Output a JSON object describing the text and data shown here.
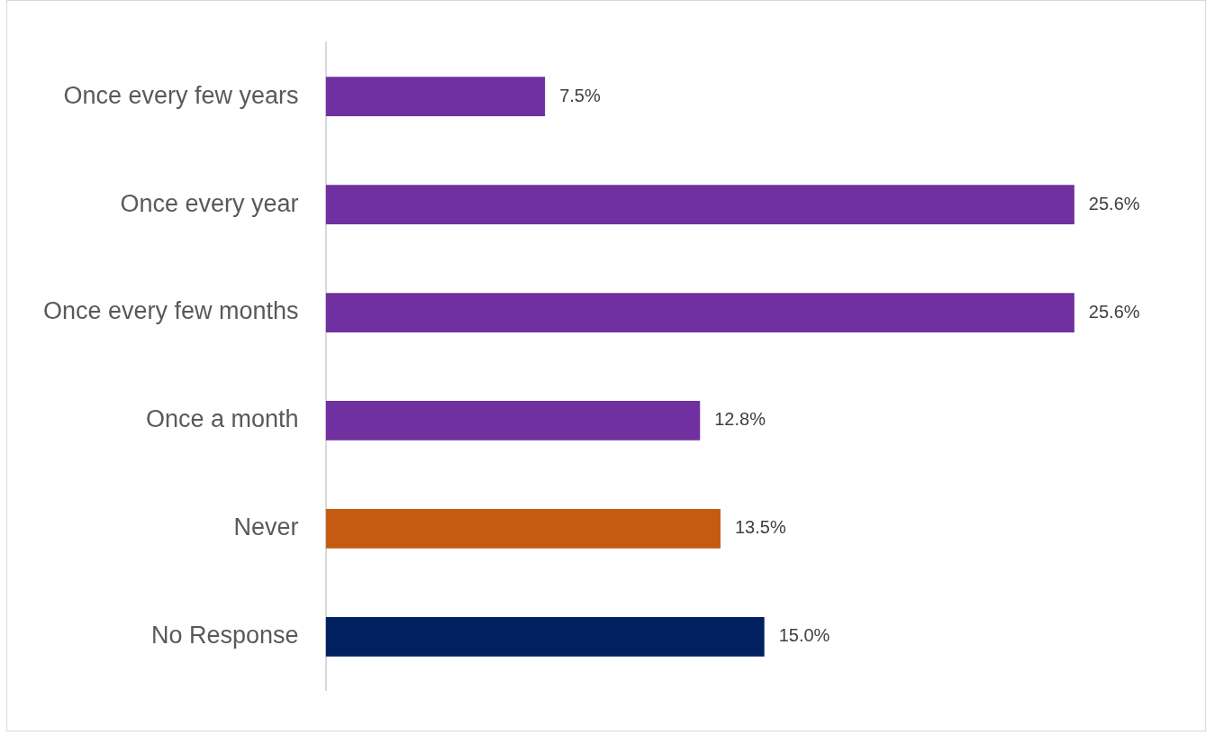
{
  "chart_data": {
    "type": "bar",
    "orientation": "horizontal",
    "categories": [
      "Once every few years",
      "Once every year",
      "Once every few months",
      "Once a month",
      "Never",
      "No Response"
    ],
    "values": [
      7.5,
      25.6,
      25.6,
      12.8,
      13.5,
      15.0
    ],
    "colors": [
      "#7030a0",
      "#7030a0",
      "#7030a0",
      "#7030a0",
      "#c55a11",
      "#002060"
    ],
    "value_labels": [
      "7.5%",
      "25.6%",
      "25.6%",
      "12.8%",
      "13.5%",
      "15.0%"
    ],
    "legend": false
  }
}
